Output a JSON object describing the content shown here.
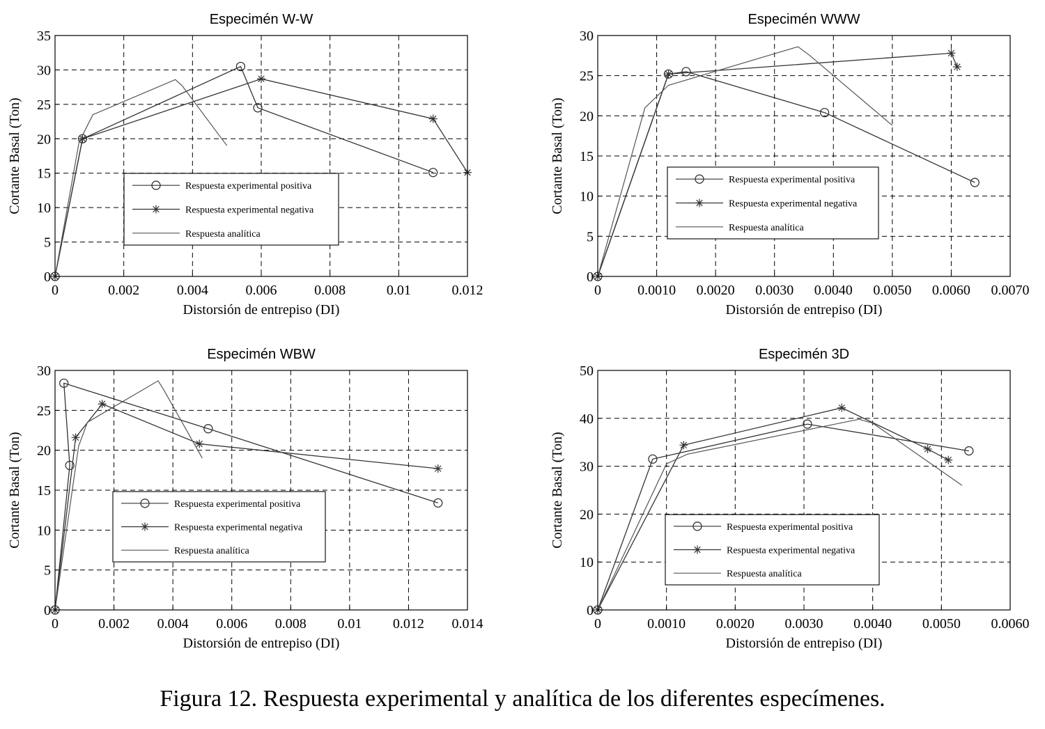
{
  "caption": "Figura 12. Respuesta experimental y analítica de los diferentes especímenes.",
  "colors": {
    "axes": "#000000",
    "grid": "#000000",
    "series": "#333333",
    "analytic": "#555555"
  },
  "chart_data": [
    {
      "type": "line",
      "title": "Especimén W-W",
      "xlabel": "Distorsión de entrepiso (DI)",
      "ylabel": "Cortante Basal (Ton)",
      "xlim": [
        0,
        0.012
      ],
      "ylim": [
        0,
        35
      ],
      "xticks": [
        0,
        0.002,
        0.004,
        0.006,
        0.008,
        0.01,
        0.012
      ],
      "xtick_labels": [
        "0",
        "0.002",
        "0.004",
        "0.006",
        "0.008",
        "0.01",
        "0.012"
      ],
      "yticks": [
        0,
        5,
        10,
        15,
        20,
        25,
        30,
        35
      ],
      "ytick_labels": [
        "0",
        "5",
        "10",
        "15",
        "20",
        "25",
        "30",
        "35"
      ],
      "grid": true,
      "series": [
        {
          "name": "Respuesta experimental positiva",
          "marker": "circle",
          "x": [
            0,
            0.0008,
            0.0054,
            0.0059,
            0.011
          ],
          "y": [
            0,
            20,
            30.5,
            24.5,
            15.1
          ]
        },
        {
          "name": "Respuesta experimental negativa",
          "marker": "star",
          "x": [
            0,
            0.0008,
            0.006,
            0.011,
            0.012
          ],
          "y": [
            0,
            20,
            28.7,
            22.9,
            15.1
          ]
        },
        {
          "name": "Respuesta analítica",
          "marker": "none",
          "x": [
            0,
            0.0007,
            0.0011,
            0.0035,
            0.0037,
            0.005
          ],
          "y": [
            0,
            19.5,
            23.5,
            28.6,
            27.7,
            19
          ]
        }
      ]
    },
    {
      "type": "line",
      "title": "Especimén WWW",
      "xlabel": "Distorsión de entrepiso (DI)",
      "ylabel": "Cortante Basal (Ton)",
      "xlim": [
        0,
        0.007
      ],
      "ylim": [
        0,
        30
      ],
      "xticks": [
        0,
        0.001,
        0.002,
        0.003,
        0.004,
        0.005,
        0.006,
        0.007
      ],
      "xtick_labels": [
        "0",
        "0.0010",
        "0.0020",
        "0.0030",
        "0.0040",
        "0.0050",
        "0.0060",
        "0.0070"
      ],
      "yticks": [
        0,
        5,
        10,
        15,
        20,
        25,
        30
      ],
      "ytick_labels": [
        "0",
        "5",
        "10",
        "15",
        "20",
        "25",
        "30"
      ],
      "grid": true,
      "series": [
        {
          "name": "Respuesta experimental positiva",
          "marker": "circle",
          "x": [
            0,
            0.0012,
            0.0015,
            0.00385,
            0.0064
          ],
          "y": [
            0,
            25.2,
            25.5,
            20.4,
            11.7
          ]
        },
        {
          "name": "Respuesta experimental negativa",
          "marker": "star",
          "x": [
            0,
            0.0012,
            0.006,
            0.0061
          ],
          "y": [
            0,
            25.2,
            27.8,
            26.1
          ]
        },
        {
          "name": "Respuesta analítica",
          "marker": "none",
          "x": [
            0,
            0.0008,
            0.0012,
            0.0034,
            0.0036,
            0.005
          ],
          "y": [
            0,
            21,
            23.8,
            28.6,
            27.5,
            18.8
          ]
        }
      ]
    },
    {
      "type": "line",
      "title": "Especimén WBW",
      "xlabel": "Distorsión de entrepiso (DI)",
      "ylabel": "Cortante Basal (Ton)",
      "xlim": [
        0,
        0.014
      ],
      "ylim": [
        0,
        30
      ],
      "xticks": [
        0,
        0.002,
        0.004,
        0.006,
        0.008,
        0.01,
        0.012,
        0.014
      ],
      "xtick_labels": [
        "0",
        "0.002",
        "0.004",
        "0.006",
        "0.008",
        "0.01",
        "0.012",
        "0.014"
      ],
      "yticks": [
        0,
        5,
        10,
        15,
        20,
        25,
        30
      ],
      "ytick_labels": [
        "0",
        "5",
        "10",
        "15",
        "20",
        "25",
        "30"
      ],
      "grid": true,
      "series": [
        {
          "name": "Respuesta experimental positiva",
          "marker": "circle",
          "x": [
            0,
            0.0005,
            0.0003,
            0.0052,
            0.013
          ],
          "y": [
            0,
            18.1,
            28.4,
            22.7,
            13.4
          ]
        },
        {
          "name": "Respuesta experimental negativa",
          "marker": "star",
          "x": [
            0,
            0.0007,
            0.0016,
            0.0049,
            0.013
          ],
          "y": [
            0,
            21.6,
            25.8,
            20.8,
            17.7
          ]
        },
        {
          "name": "Respuesta analítica",
          "marker": "none",
          "x": [
            0,
            0.0008,
            0.0011,
            0.0035,
            0.0037,
            0.005
          ],
          "y": [
            0,
            20.5,
            23.5,
            28.7,
            27.5,
            19
          ]
        }
      ]
    },
    {
      "type": "line",
      "title": "Especimén 3D",
      "xlabel": "Distorsión de entrepiso (DI)",
      "ylabel": "Cortante Basal (Ton)",
      "xlim": [
        0,
        0.006
      ],
      "ylim": [
        0,
        50
      ],
      "xticks": [
        0,
        0.001,
        0.002,
        0.003,
        0.004,
        0.005,
        0.006
      ],
      "xtick_labels": [
        "0",
        "0.0010",
        "0.0020",
        "0.0030",
        "0.0040",
        "0.0050",
        "0.0060"
      ],
      "yticks": [
        0,
        10,
        20,
        30,
        40,
        50
      ],
      "ytick_labels": [
        "0",
        "10",
        "20",
        "30",
        "40",
        "50"
      ],
      "grid": true,
      "series": [
        {
          "name": "Respuesta experimental positiva",
          "marker": "circle",
          "x": [
            0,
            0.0008,
            0.00305,
            0.0054
          ],
          "y": [
            0,
            31.5,
            38.8,
            33.2
          ]
        },
        {
          "name": "Respuesta experimental negativa",
          "marker": "star",
          "x": [
            0,
            0.00125,
            0.00355,
            0.0048,
            0.0051
          ],
          "y": [
            0,
            34.4,
            42.2,
            33.6,
            31.3
          ]
        },
        {
          "name": "Respuesta analítica",
          "marker": "none",
          "x": [
            0,
            0.001,
            0.0013,
            0.0038,
            0.004,
            0.0053
          ],
          "y": [
            0,
            30.5,
            32.5,
            39.8,
            39,
            26
          ]
        }
      ]
    }
  ]
}
